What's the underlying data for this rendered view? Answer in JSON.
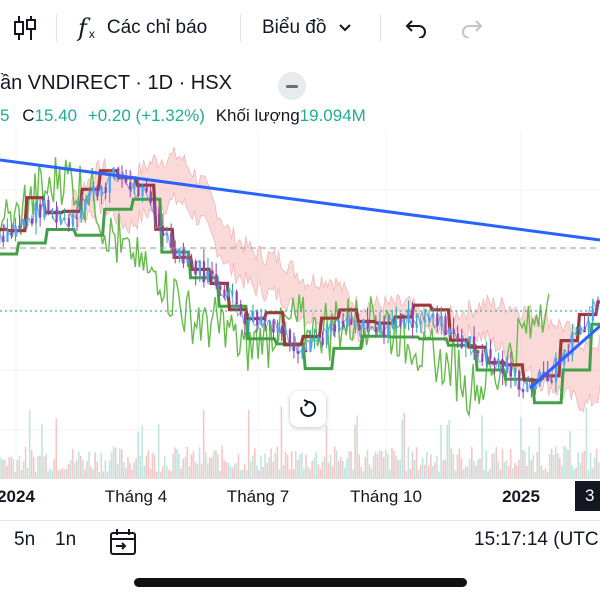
{
  "toolbar": {
    "indicators_label": "Các chỉ báo",
    "chart_type_label": "Biểu đồ"
  },
  "legend": {
    "title": "ần VNDIRECT · 1D · HSX",
    "ohlc_prefix": "5",
    "close_label": "C",
    "close_value": "15.40",
    "change": "+0.20 (+1.32%)",
    "volume_label": "Khối lượng",
    "volume_value": "19.094M"
  },
  "colors": {
    "up": "#22ab94",
    "down": "#8e44ad",
    "trendline": "#2962ff",
    "kijun": "#9b3a3a",
    "senkou_b": "#43a047",
    "chikou": "#66bb4a",
    "cloud_bear": "#f8c9c9",
    "cloud_bull": "#c8e6c9"
  },
  "chart_data": {
    "type": "candlestick",
    "series": [
      {
        "name": "VNDIRECT close",
        "values": [
          16.9,
          17.1,
          17.6,
          17.3,
          18.0,
          18.4,
          17.9,
          16.8,
          16.2,
          15.8,
          15.0,
          14.9,
          14.3,
          14.5,
          14.8,
          14.6,
          14.9,
          15.0,
          14.7,
          14.2,
          13.8,
          13.3,
          13.6,
          14.6,
          15.4
        ]
      }
    ],
    "x_ticks": [
      "2024",
      "Tháng 4",
      "Tháng 7",
      "Tháng 10",
      "2025"
    ],
    "xaxis_badge": "3",
    "price_reference_dashed": "dashed line",
    "price_reference_dotted": "dotted line"
  },
  "bottombar": {
    "range_5d": "5n",
    "range_1m": "1n",
    "time": "15:17:14 (UTC"
  }
}
